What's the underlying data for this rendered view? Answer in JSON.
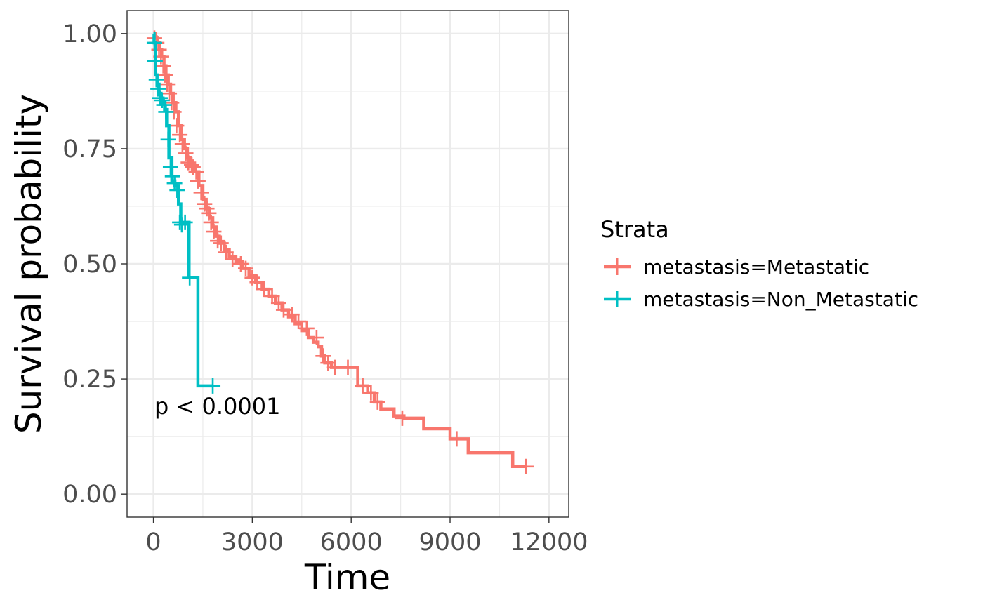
{
  "chart_data": {
    "type": "line",
    "xlabel": "Time",
    "ylabel": "Survival probability",
    "xlim": [
      -800,
      12600
    ],
    "ylim": [
      -0.05,
      1.05
    ],
    "x_ticks": [
      0,
      3000,
      6000,
      9000,
      12000
    ],
    "x_tick_labels": [
      "0",
      "3000",
      "6000",
      "9000",
      "12000"
    ],
    "y_ticks": [
      0,
      0.25,
      0.5,
      0.75,
      1.0
    ],
    "y_tick_labels": [
      "0.00",
      "0.25",
      "0.50",
      "0.75",
      "1.00"
    ],
    "grid": true,
    "legend": {
      "title": "Strata",
      "placement": "right"
    },
    "annotation": "p < 0.0001",
    "series": [
      {
        "name": "metastasis=Metastatic",
        "color": "#F8766D",
        "x": [
          0,
          60,
          120,
          180,
          250,
          320,
          380,
          450,
          520,
          600,
          680,
          760,
          850,
          940,
          1030,
          1130,
          1250,
          1380,
          1500,
          1600,
          1700,
          1800,
          1900,
          2000,
          2150,
          2300,
          2500,
          2700,
          2900,
          3100,
          3300,
          3500,
          3700,
          3900,
          4100,
          4300,
          4500,
          4700,
          4850,
          5000,
          5100,
          5200,
          5400,
          6000,
          6200,
          6500,
          6700,
          6900,
          7300,
          7600,
          8200,
          9000,
          9550,
          10900,
          11300
        ],
        "y": [
          1.0,
          0.99,
          0.98,
          0.965,
          0.95,
          0.93,
          0.91,
          0.89,
          0.87,
          0.85,
          0.83,
          0.8,
          0.77,
          0.75,
          0.73,
          0.715,
          0.7,
          0.67,
          0.64,
          0.62,
          0.6,
          0.58,
          0.56,
          0.545,
          0.53,
          0.515,
          0.505,
          0.49,
          0.475,
          0.46,
          0.445,
          0.43,
          0.415,
          0.4,
          0.385,
          0.37,
          0.355,
          0.34,
          0.33,
          0.32,
          0.3,
          0.285,
          0.275,
          0.275,
          0.235,
          0.22,
          0.2,
          0.185,
          0.17,
          0.165,
          0.142,
          0.12,
          0.09,
          0.06,
          0.06
        ],
        "censored_x": [
          30,
          100,
          170,
          230,
          300,
          350,
          420,
          480,
          550,
          620,
          700,
          800,
          880,
          980,
          1060,
          1160,
          1200,
          1300,
          1350,
          1450,
          1550,
          1620,
          1680,
          1750,
          1830,
          1950,
          2050,
          2200,
          2400,
          2650,
          2800,
          3000,
          3150,
          3350,
          3600,
          3800,
          3950,
          4200,
          4400,
          4650,
          4950,
          5150,
          5300,
          5500,
          5900,
          6350,
          6600,
          6800,
          7550,
          9200,
          11300
        ],
        "censored_y": [
          0.99,
          0.98,
          0.965,
          0.95,
          0.93,
          0.91,
          0.89,
          0.87,
          0.85,
          0.83,
          0.8,
          0.78,
          0.76,
          0.74,
          0.72,
          0.715,
          0.71,
          0.7,
          0.68,
          0.655,
          0.63,
          0.62,
          0.61,
          0.59,
          0.57,
          0.55,
          0.545,
          0.525,
          0.51,
          0.5,
          0.49,
          0.47,
          0.46,
          0.445,
          0.43,
          0.415,
          0.4,
          0.39,
          0.375,
          0.36,
          0.34,
          0.3,
          0.285,
          0.275,
          0.275,
          0.235,
          0.22,
          0.2,
          0.165,
          0.12,
          0.06
        ]
      },
      {
        "name": "metastasis=Non_Metastatic",
        "color": "#00BFC4",
        "x": [
          0,
          20,
          60,
          110,
          170,
          230,
          290,
          350,
          400,
          470,
          560,
          650,
          760,
          830,
          1030,
          1080,
          1350,
          1800
        ],
        "y": [
          1.0,
          0.98,
          0.91,
          0.89,
          0.87,
          0.86,
          0.85,
          0.835,
          0.8,
          0.73,
          0.68,
          0.67,
          0.63,
          0.59,
          0.59,
          0.47,
          0.235,
          0.235
        ],
        "censored_x": [
          30,
          50,
          90,
          140,
          200,
          260,
          320,
          380,
          450,
          520,
          580,
          640,
          720,
          800,
          860,
          960,
          1100,
          1800
        ],
        "censored_y": [
          0.98,
          0.94,
          0.9,
          0.88,
          0.86,
          0.855,
          0.845,
          0.83,
          0.77,
          0.71,
          0.69,
          0.675,
          0.66,
          0.59,
          0.585,
          0.59,
          0.47,
          0.235
        ]
      }
    ]
  }
}
